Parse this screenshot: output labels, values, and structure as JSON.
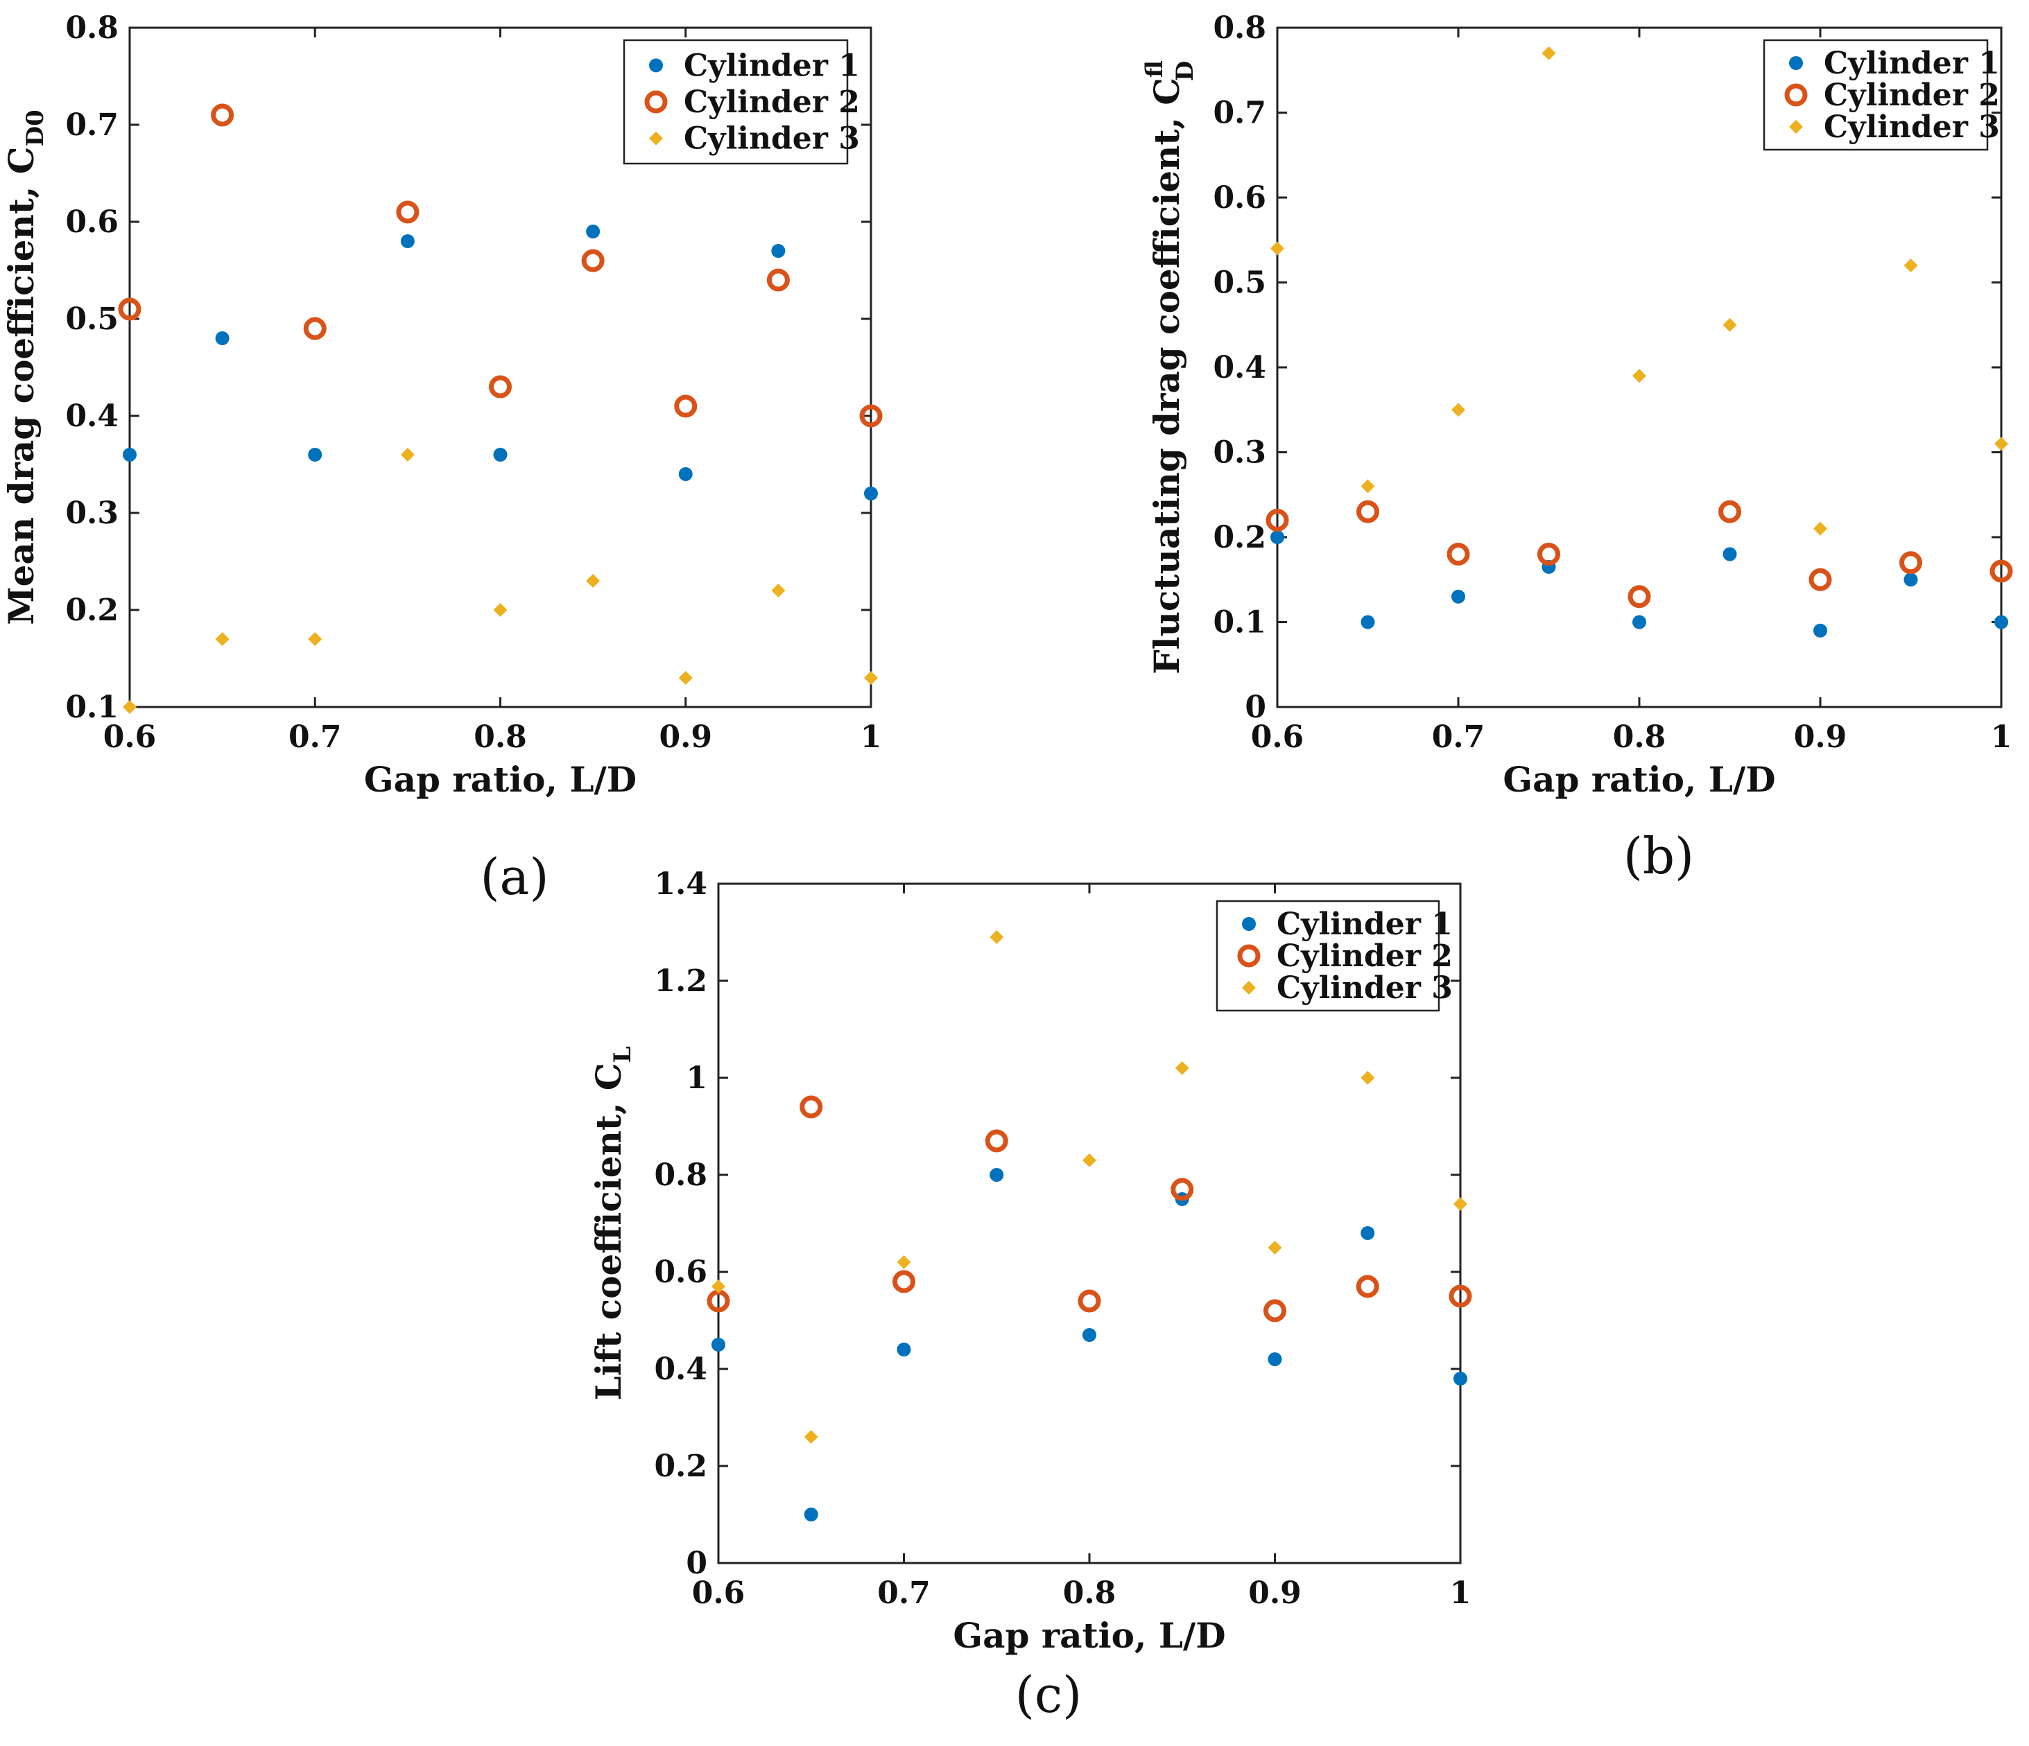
{
  "chart_data": [
    {
      "id": "a",
      "type": "scatter",
      "panel_label": "(a)",
      "title": "",
      "xlabel": "Gap ratio, L/D",
      "ylabel": "Mean drag coefficient, C",
      "ylabel_sub": "D0",
      "ylabel_sup": "",
      "xlim": [
        0.6,
        1.0
      ],
      "ylim": [
        0.1,
        0.8
      ],
      "xticks": [
        0.6,
        0.7,
        0.8,
        0.9,
        1.0
      ],
      "xtick_labels": [
        "0.6",
        "0.7",
        "0.8",
        "0.9",
        "1"
      ],
      "yticks": [
        0.1,
        0.2,
        0.3,
        0.4,
        0.5,
        0.6,
        0.7,
        0.8
      ],
      "ytick_labels": [
        "0.1",
        "0.2",
        "0.3",
        "0.4",
        "0.5",
        "0.6",
        "0.7",
        "0.8"
      ],
      "grid": false,
      "legend_position": "top-right",
      "x": [
        0.6,
        0.65,
        0.7,
        0.75,
        0.8,
        0.85,
        0.9,
        0.95,
        1.0
      ],
      "series": [
        {
          "name": "Cylinder 1",
          "marker": "dot",
          "color": "#0072BD",
          "values": [
            0.36,
            0.48,
            0.36,
            0.58,
            0.36,
            0.59,
            0.34,
            0.57,
            0.32
          ]
        },
        {
          "name": "Cylinder 2",
          "marker": "ring",
          "color": "#D95319",
          "values": [
            0.51,
            0.71,
            0.49,
            0.61,
            0.43,
            0.56,
            0.41,
            0.54,
            0.4
          ]
        },
        {
          "name": "Cylinder 3",
          "marker": "diamond",
          "color": "#EDB120",
          "values": [
            0.1,
            0.17,
            0.17,
            0.36,
            0.2,
            0.23,
            0.13,
            0.22,
            0.13
          ]
        }
      ]
    },
    {
      "id": "b",
      "type": "scatter",
      "panel_label": "(b)",
      "title": "",
      "xlabel": "Gap ratio, L/D",
      "ylabel": "Fluctuating drag coefficient, C",
      "ylabel_sub": "D",
      "ylabel_sup": "fl",
      "xlim": [
        0.6,
        1.0
      ],
      "ylim": [
        0,
        0.8
      ],
      "xticks": [
        0.6,
        0.7,
        0.8,
        0.9,
        1.0
      ],
      "xtick_labels": [
        "0.6",
        "0.7",
        "0.8",
        "0.9",
        "1"
      ],
      "yticks": [
        0,
        0.1,
        0.2,
        0.3,
        0.4,
        0.5,
        0.6,
        0.7,
        0.8
      ],
      "ytick_labels": [
        "0",
        "0.1",
        "0.2",
        "0.3",
        "0.4",
        "0.5",
        "0.6",
        "0.7",
        "0.8"
      ],
      "grid": false,
      "legend_position": "top-right",
      "x": [
        0.6,
        0.65,
        0.7,
        0.75,
        0.8,
        0.85,
        0.9,
        0.95,
        1.0
      ],
      "series": [
        {
          "name": "Cylinder 1",
          "marker": "dot",
          "color": "#0072BD",
          "values": [
            0.2,
            0.1,
            0.13,
            0.165,
            0.1,
            0.18,
            0.09,
            0.15,
            0.1
          ]
        },
        {
          "name": "Cylinder 2",
          "marker": "ring",
          "color": "#D95319",
          "values": [
            0.22,
            0.23,
            0.18,
            0.18,
            0.13,
            0.23,
            0.15,
            0.17,
            0.16
          ]
        },
        {
          "name": "Cylinder 3",
          "marker": "diamond",
          "color": "#EDB120",
          "values": [
            0.54,
            0.26,
            0.35,
            0.77,
            0.39,
            0.45,
            0.21,
            0.52,
            0.31
          ]
        }
      ]
    },
    {
      "id": "c",
      "type": "scatter",
      "panel_label": "(c)",
      "title": "",
      "xlabel": "Gap ratio, L/D",
      "ylabel": "Lift coefficient, C",
      "ylabel_sub": "L",
      "ylabel_sup": "",
      "xlim": [
        0.6,
        1.0
      ],
      "ylim": [
        0,
        1.4
      ],
      "xticks": [
        0.6,
        0.7,
        0.8,
        0.9,
        1.0
      ],
      "xtick_labels": [
        "0.6",
        "0.7",
        "0.8",
        "0.9",
        "1"
      ],
      "yticks": [
        0,
        0.2,
        0.4,
        0.6,
        0.8,
        1.0,
        1.2,
        1.4
      ],
      "ytick_labels": [
        "0",
        "0.2",
        "0.4",
        "0.6",
        "0.8",
        "1",
        "1.2",
        "1.4"
      ],
      "grid": false,
      "legend_position": "top-right",
      "x": [
        0.6,
        0.65,
        0.7,
        0.75,
        0.8,
        0.85,
        0.9,
        0.95,
        1.0
      ],
      "series": [
        {
          "name": "Cylinder 1",
          "marker": "dot",
          "color": "#0072BD",
          "values": [
            0.45,
            0.1,
            0.44,
            0.8,
            0.47,
            0.75,
            0.42,
            0.68,
            0.38
          ]
        },
        {
          "name": "Cylinder 2",
          "marker": "ring",
          "color": "#D95319",
          "values": [
            0.54,
            0.94,
            0.58,
            0.87,
            0.54,
            0.77,
            0.52,
            0.57,
            0.55
          ]
        },
        {
          "name": "Cylinder 3",
          "marker": "diamond",
          "color": "#EDB120",
          "values": [
            0.57,
            0.26,
            0.62,
            1.29,
            0.83,
            1.02,
            0.65,
            1.0,
            0.74
          ]
        }
      ]
    }
  ]
}
